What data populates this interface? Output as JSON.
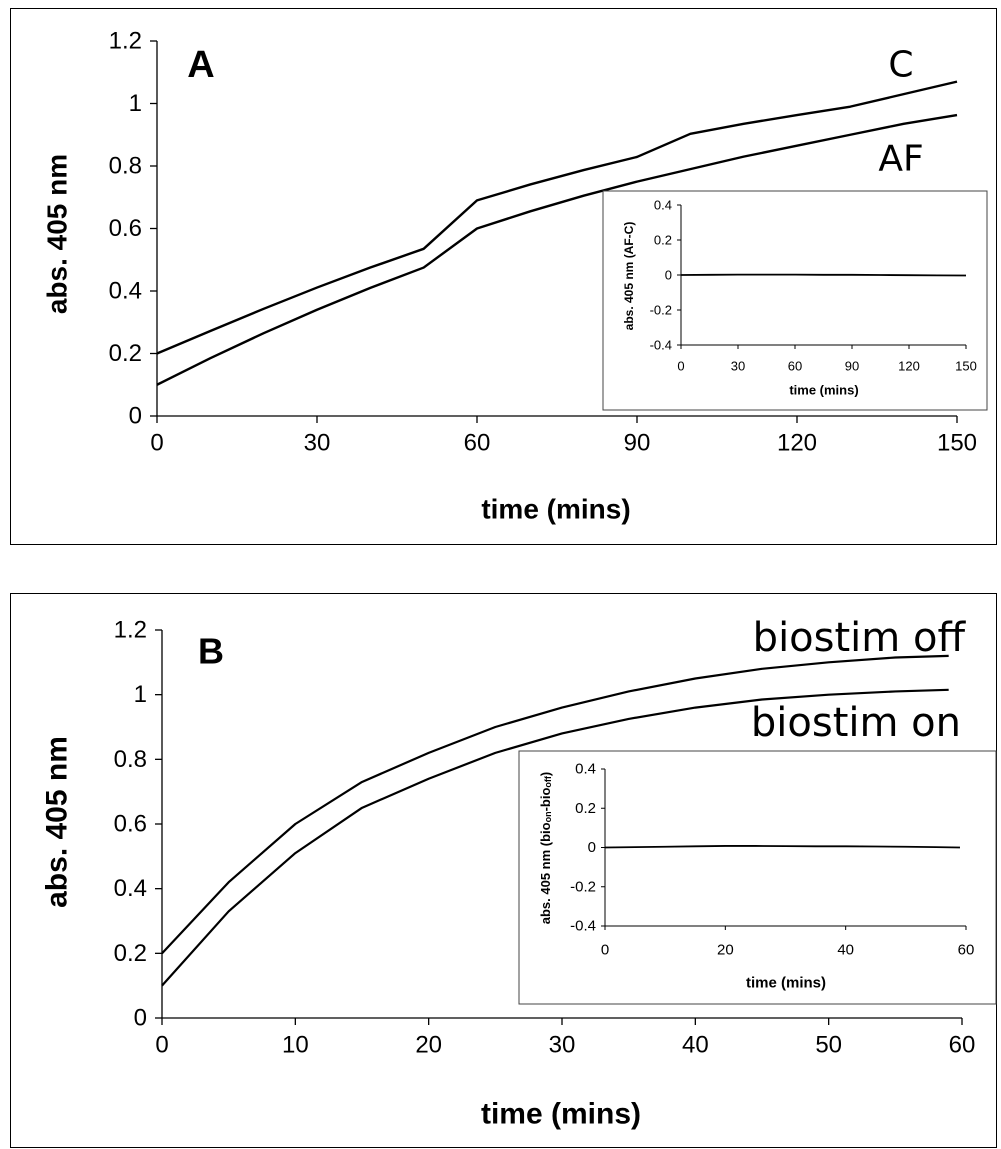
{
  "chart_data": [
    {
      "type": "line",
      "panel_label": "A",
      "xlabel": "time (mins)",
      "ylabel": "abs. 405 nm",
      "xlim": [
        0,
        150
      ],
      "ylim": [
        0,
        1.2
      ],
      "xticks": [
        "0",
        "30",
        "60",
        "90",
        "120",
        "150"
      ],
      "yticks": [
        "0",
        "0.2",
        "0.4",
        "0.6",
        "0.8",
        "1",
        "1.2"
      ],
      "grid": false,
      "series": [
        {
          "name": "C",
          "x": [
            0,
            10,
            20,
            30,
            40,
            50,
            60,
            70,
            80,
            90,
            100,
            110,
            120,
            130,
            140,
            150
          ],
          "y": [
            0.2,
            0.272,
            0.343,
            0.411,
            0.475,
            0.535,
            0.69,
            0.741,
            0.787,
            0.829,
            0.903,
            0.935,
            0.963,
            0.99,
            1.03,
            1.07
          ]
        },
        {
          "name": "AF",
          "x": [
            0,
            10,
            20,
            30,
            40,
            50,
            60,
            70,
            80,
            90,
            100,
            110,
            120,
            130,
            140,
            150
          ],
          "y": [
            0.1,
            0.185,
            0.265,
            0.34,
            0.41,
            0.475,
            0.6,
            0.655,
            0.705,
            0.75,
            0.79,
            0.83,
            0.865,
            0.9,
            0.935,
            0.963
          ]
        }
      ],
      "inset": {
        "type": "line",
        "xlabel": "time (mins)",
        "ylabel": "abs. 405 nm (AF-C)",
        "xlim": [
          0,
          150
        ],
        "ylim": [
          -0.4,
          0.4
        ],
        "xticks": [
          "0",
          "30",
          "60",
          "90",
          "120",
          "150"
        ],
        "yticks": [
          "-0.4",
          "-0.2",
          "0",
          "0.2",
          "0.4"
        ],
        "series": [
          {
            "x": [
              0,
              15,
              30,
              45,
              60,
              75,
              90,
              105,
              120,
              135,
              150
            ],
            "y": [
              0,
              0.001,
              0.002,
              0.002,
              0.002,
              0.001,
              0.001,
              0.0,
              -0.001,
              -0.002,
              -0.003
            ]
          }
        ]
      }
    },
    {
      "type": "line",
      "panel_label": "B",
      "xlabel": "time (mins)",
      "ylabel": "abs. 405 nm",
      "xlim": [
        0,
        60
      ],
      "ylim": [
        0,
        1.2
      ],
      "xticks": [
        "0",
        "10",
        "20",
        "30",
        "40",
        "50",
        "60"
      ],
      "yticks": [
        "0",
        "0.2",
        "0.4",
        "0.6",
        "0.8",
        "1",
        "1.2"
      ],
      "grid": false,
      "series": [
        {
          "name": "biostim off",
          "x": [
            0,
            5,
            10,
            15,
            20,
            25,
            30,
            35,
            40,
            45,
            50,
            55,
            59
          ],
          "y": [
            0.2,
            0.42,
            0.6,
            0.73,
            0.82,
            0.9,
            0.96,
            1.01,
            1.05,
            1.08,
            1.1,
            1.115,
            1.12
          ]
        },
        {
          "name": "biostim on",
          "x": [
            0,
            5,
            10,
            15,
            20,
            25,
            30,
            35,
            40,
            45,
            50,
            55,
            59
          ],
          "y": [
            0.1,
            0.33,
            0.51,
            0.65,
            0.74,
            0.82,
            0.88,
            0.925,
            0.96,
            0.985,
            1.0,
            1.01,
            1.015
          ]
        }
      ],
      "inset": {
        "type": "line",
        "xlabel": "time (mins)",
        "ylabel_parts": [
          "abs. 405 nm (bio",
          "on",
          "-bio",
          "off",
          ")"
        ],
        "xlim": [
          0,
          60
        ],
        "ylim": [
          -0.4,
          0.4
        ],
        "xticks": [
          "0",
          "20",
          "40",
          "60"
        ],
        "yticks": [
          "-0.4",
          "-0.2",
          "0",
          "0.2",
          "0.4"
        ],
        "series": [
          {
            "x": [
              0,
              5,
              10,
              15,
              20,
              25,
              30,
              35,
              40,
              45,
              50,
              55,
              59
            ],
            "y": [
              0,
              0.002,
              0.004,
              0.006,
              0.008,
              0.008,
              0.007,
              0.006,
              0.006,
              0.005,
              0.004,
              0.002,
              0.0
            ]
          }
        ]
      }
    }
  ]
}
